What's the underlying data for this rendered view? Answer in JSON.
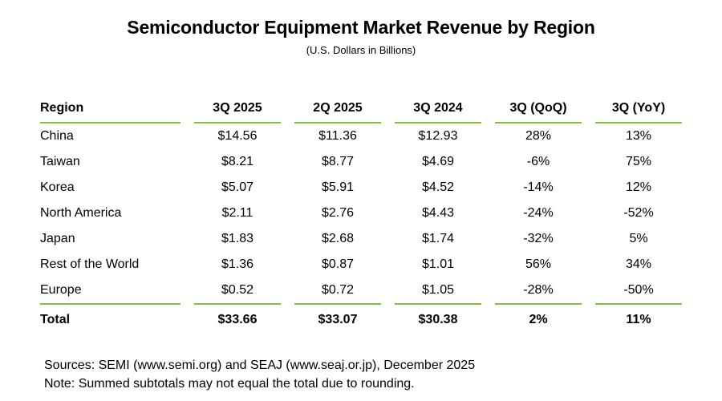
{
  "title": "Semiconductor Equipment Market Revenue by Region",
  "subtitle": "(U.S. Dollars in Billions)",
  "colors": {
    "accent_green": "#7DC142",
    "text": "#000000",
    "background": "#FFFFFF"
  },
  "table": {
    "columns": [
      "Region",
      "3Q 2025",
      "2Q 2025",
      "3Q 2024",
      "3Q (QoQ)",
      "3Q (YoY)"
    ],
    "rows": [
      [
        "China",
        "$14.56",
        "$11.36",
        "$12.93",
        "28%",
        "13%"
      ],
      [
        "Taiwan",
        "$8.21",
        "$8.77",
        "$4.69",
        "-6%",
        "75%"
      ],
      [
        "Korea",
        "$5.07",
        "$5.91",
        "$4.52",
        "-14%",
        "12%"
      ],
      [
        "North America",
        "$2.11",
        "$2.76",
        "$4.43",
        "-24%",
        "-52%"
      ],
      [
        "Japan",
        "$1.83",
        "$2.68",
        "$1.74",
        "-32%",
        "5%"
      ],
      [
        "Rest of the World",
        "$1.36",
        "$0.87",
        "$1.01",
        "56%",
        "34%"
      ],
      [
        "Europe",
        "$0.52",
        "$0.72",
        "$1.05",
        "-28%",
        "-50%"
      ]
    ],
    "total_row": [
      "Total",
      "$33.66",
      "$33.07",
      "$30.38",
      "2%",
      "11%"
    ]
  },
  "footer": {
    "sources": "Sources: SEMI (www.semi.org) and SEAJ (www.seaj.or.jp), December 2025",
    "note": "Note: Summed subtotals may not equal the total due to rounding."
  },
  "chart_data": {
    "type": "table",
    "title": "Semiconductor Equipment Market Revenue by Region",
    "subtitle": "(U.S. Dollars in Billions)",
    "columns": [
      "Region",
      "3Q 2025",
      "2Q 2025",
      "3Q 2024",
      "3Q (QoQ)",
      "3Q (YoY)"
    ],
    "rows": [
      [
        "China",
        14.56,
        11.36,
        12.93,
        "28%",
        "13%"
      ],
      [
        "Taiwan",
        8.21,
        8.77,
        4.69,
        "-6%",
        "75%"
      ],
      [
        "Korea",
        5.07,
        5.91,
        4.52,
        "-14%",
        "12%"
      ],
      [
        "North America",
        2.11,
        2.76,
        4.43,
        "-24%",
        "-52%"
      ],
      [
        "Japan",
        1.83,
        2.68,
        1.74,
        "-32%",
        "5%"
      ],
      [
        "Rest of the World",
        1.36,
        0.87,
        1.01,
        "56%",
        "34%"
      ],
      [
        "Europe",
        0.52,
        0.72,
        1.05,
        "-28%",
        "-50%"
      ]
    ],
    "total_row": [
      "Total",
      33.66,
      33.07,
      30.38,
      "2%",
      "11%"
    ],
    "units": "U.S. Dollars in Billions"
  }
}
